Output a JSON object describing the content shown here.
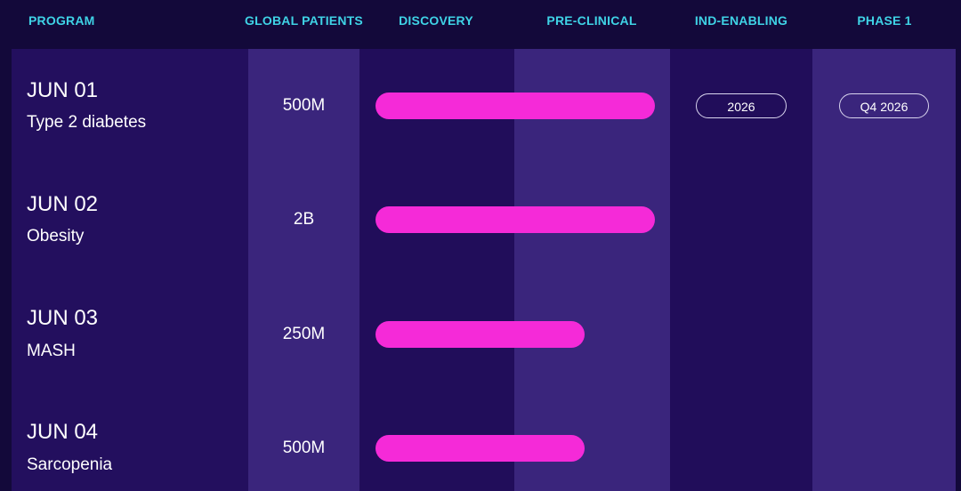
{
  "headers": {
    "program": "PROGRAM",
    "global_patients": "GLOBAL PATIENTS",
    "discovery": "DISCOVERY",
    "pre_clinical": "PRE-CLINICAL",
    "ind_enabling": "IND-ENABLING",
    "phase1": "PHASE 1"
  },
  "colors": {
    "background": "#13093a",
    "header_text": "#3fd3e6",
    "bar": "#f52ad8",
    "column_dark": "#210e5c",
    "column_light": "#3a257c"
  },
  "chart_data": {
    "type": "bar",
    "orientation": "horizontal",
    "stages": [
      "DISCOVERY",
      "PRE-CLINICAL",
      "IND-ENABLING",
      "PHASE 1"
    ],
    "programs": [
      {
        "code": "JUN 01",
        "name": "Type 2 diabetes",
        "patients": "500M",
        "progress_stage": 2.0,
        "ind_label": "2026",
        "phase1_label": "Q4 2026"
      },
      {
        "code": "JUN 02",
        "name": "Obesity",
        "patients": "2B",
        "progress_stage": 2.0,
        "ind_label": "",
        "phase1_label": ""
      },
      {
        "code": "JUN 03",
        "name": "MASH",
        "patients": "250M",
        "progress_stage": 1.55,
        "ind_label": "",
        "phase1_label": ""
      },
      {
        "code": "JUN 04",
        "name": "Sarcopenia",
        "patients": "500M",
        "progress_stage": 1.55,
        "ind_label": "",
        "phase1_label": ""
      }
    ]
  }
}
